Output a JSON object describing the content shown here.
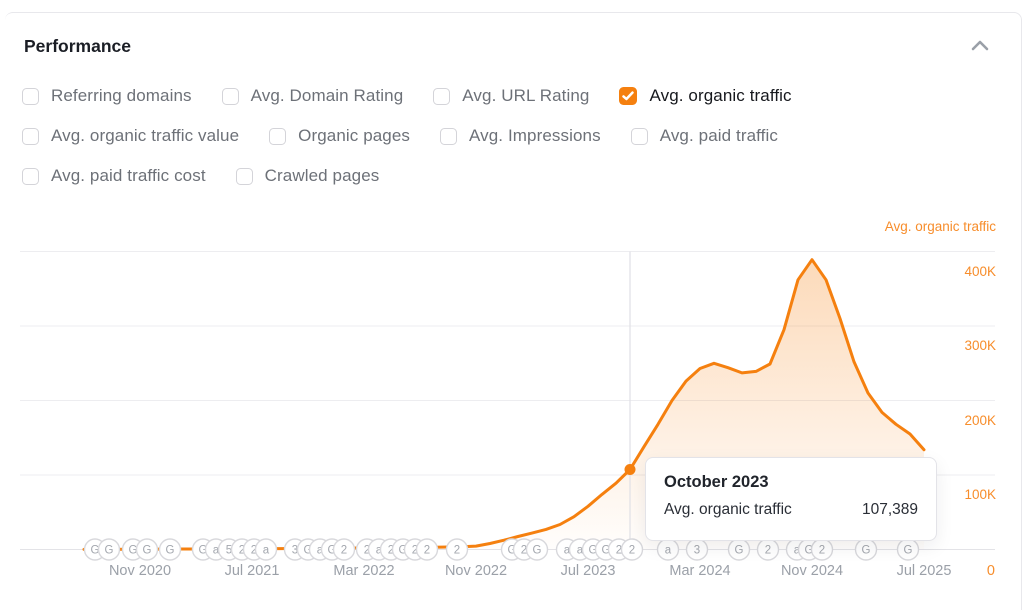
{
  "header": {
    "title": "Performance",
    "collapse_icon": "chevron-up"
  },
  "filters": {
    "rows": [
      [
        {
          "label": "Referring domains",
          "checked": false
        },
        {
          "label": "Avg. Domain Rating",
          "checked": false
        },
        {
          "label": "Avg. URL Rating",
          "checked": false
        },
        {
          "label": "Avg. organic traffic",
          "checked": true
        }
      ],
      [
        {
          "label": "Avg. organic traffic value",
          "checked": false
        },
        {
          "label": "Organic pages",
          "checked": false
        },
        {
          "label": "Avg. Impressions",
          "checked": false
        },
        {
          "label": "Avg. paid traffic",
          "checked": false
        }
      ],
      [
        {
          "label": "Avg. paid traffic cost",
          "checked": false
        },
        {
          "label": "Crawled pages",
          "checked": false
        }
      ]
    ]
  },
  "chart": {
    "legend": "Avg. organic traffic",
    "colors": {
      "line": "#f5800f",
      "area_top": "rgba(246,130,20,0.30)",
      "area_bottom": "rgba(246,130,20,0.01)",
      "axis_label": "#f78d2b",
      "grid": "#ededf0",
      "baseline": "#e3e3e7",
      "crosshair": "#e0e0e5",
      "badge_border": "#d8d8dc",
      "badge_text": "#a3a7ae"
    },
    "y_axis": {
      "ticks": [
        {
          "label": "400K",
          "value": 400000
        },
        {
          "label": "300K",
          "value": 300000
        },
        {
          "label": "200K",
          "value": 200000
        },
        {
          "label": "100K",
          "value": 100000
        }
      ],
      "zero_label": "0"
    },
    "x_axis": {
      "ticks": [
        {
          "label": "Nov 2020",
          "i": 4
        },
        {
          "label": "Jul 2021",
          "i": 12
        },
        {
          "label": "Mar 2022",
          "i": 20
        },
        {
          "label": "Nov 2022",
          "i": 28
        },
        {
          "label": "Jul 2023",
          "i": 36
        },
        {
          "label": "Mar 2024",
          "i": 44
        },
        {
          "label": "Nov 2024",
          "i": 52
        },
        {
          "label": "Jul 2025",
          "i": 60
        }
      ]
    },
    "tooltip": {
      "title": "October 2023",
      "metric": "Avg. organic traffic",
      "value": "107,389"
    },
    "events": [
      {
        "x": 95,
        "label": "G"
      },
      {
        "x": 109,
        "label": "G"
      },
      {
        "x": 133,
        "label": "G"
      },
      {
        "x": 147,
        "label": "G"
      },
      {
        "x": 170,
        "label": "G"
      },
      {
        "x": 203,
        "label": "G"
      },
      {
        "x": 216,
        "label": "a"
      },
      {
        "x": 229,
        "label": "5"
      },
      {
        "x": 242,
        "label": "2"
      },
      {
        "x": 254,
        "label": "2"
      },
      {
        "x": 266,
        "label": "a"
      },
      {
        "x": 295,
        "label": "3"
      },
      {
        "x": 308,
        "label": "G"
      },
      {
        "x": 320,
        "label": "a"
      },
      {
        "x": 332,
        "label": "G"
      },
      {
        "x": 344,
        "label": "2"
      },
      {
        "x": 367,
        "label": "2"
      },
      {
        "x": 379,
        "label": "a"
      },
      {
        "x": 391,
        "label": "2"
      },
      {
        "x": 403,
        "label": "G"
      },
      {
        "x": 415,
        "label": "2"
      },
      {
        "x": 427,
        "label": "2"
      },
      {
        "x": 457,
        "label": "2"
      },
      {
        "x": 512,
        "label": "G"
      },
      {
        "x": 524,
        "label": "2"
      },
      {
        "x": 537,
        "label": "G"
      },
      {
        "x": 567,
        "label": "a"
      },
      {
        "x": 580,
        "label": "a"
      },
      {
        "x": 593,
        "label": "G"
      },
      {
        "x": 606,
        "label": "G"
      },
      {
        "x": 619,
        "label": "2"
      },
      {
        "x": 632,
        "label": "2"
      },
      {
        "x": 668,
        "label": "a"
      },
      {
        "x": 697,
        "label": "3"
      },
      {
        "x": 739,
        "label": "G"
      },
      {
        "x": 768,
        "label": "2"
      },
      {
        "x": 797,
        "label": "a"
      },
      {
        "x": 809,
        "label": "G"
      },
      {
        "x": 822,
        "label": "2"
      },
      {
        "x": 866,
        "label": "G"
      },
      {
        "x": 908,
        "label": "G"
      }
    ]
  },
  "chart_data": {
    "type": "line",
    "title": "Avg. organic traffic",
    "xlabel": "",
    "ylabel": "Avg. organic traffic",
    "ylim": [
      0,
      430000
    ],
    "yticks": [
      0,
      100000,
      200000,
      300000,
      400000
    ],
    "grid": "horizontal",
    "legend_position": "top-right",
    "x": [
      "Jul 2020",
      "Aug 2020",
      "Sep 2020",
      "Oct 2020",
      "Nov 2020",
      "Dec 2020",
      "Jan 2021",
      "Feb 2021",
      "Mar 2021",
      "Apr 2021",
      "May 2021",
      "Jun 2021",
      "Jul 2021",
      "Aug 2021",
      "Sep 2021",
      "Oct 2021",
      "Nov 2021",
      "Dec 2021",
      "Jan 2022",
      "Feb 2022",
      "Mar 2022",
      "Apr 2022",
      "May 2022",
      "Jun 2022",
      "Jul 2022",
      "Aug 2022",
      "Sep 2022",
      "Oct 2022",
      "Nov 2022",
      "Dec 2022",
      "Jan 2023",
      "Feb 2023",
      "Mar 2023",
      "Apr 2023",
      "May 2023",
      "Jun 2023",
      "Jul 2023",
      "Aug 2023",
      "Sep 2023",
      "Oct 2023",
      "Nov 2023",
      "Dec 2023",
      "Jan 2024",
      "Feb 2024",
      "Mar 2024",
      "Apr 2024",
      "May 2024",
      "Jun 2024",
      "Jul 2024",
      "Aug 2024",
      "Sep 2024",
      "Oct 2024",
      "Nov 2024",
      "Dec 2024",
      "Jan 2025",
      "Feb 2025",
      "Mar 2025",
      "Apr 2025",
      "May 2025",
      "Jun 2025",
      "Jul 2025"
    ],
    "values": [
      100,
      150,
      200,
      300,
      400,
      500,
      600,
      650,
      700,
      800,
      900,
      950,
      1000,
      1100,
      1200,
      1300,
      1400,
      1500,
      1700,
      1900,
      2100,
      2300,
      2500,
      2700,
      2900,
      3100,
      3400,
      3800,
      4500,
      8000,
      12500,
      17500,
      22000,
      27000,
      33500,
      44000,
      58000,
      74000,
      89000,
      107389,
      138000,
      168000,
      200000,
      226000,
      243000,
      250000,
      244000,
      237000,
      239000,
      249000,
      295000,
      362000,
      389000,
      362000,
      310000,
      252000,
      210000,
      184000,
      168000,
      155000,
      134000
    ],
    "hover": {
      "index": 39,
      "x": "Oct 2023",
      "label": "October 2023",
      "value": 107389
    }
  }
}
